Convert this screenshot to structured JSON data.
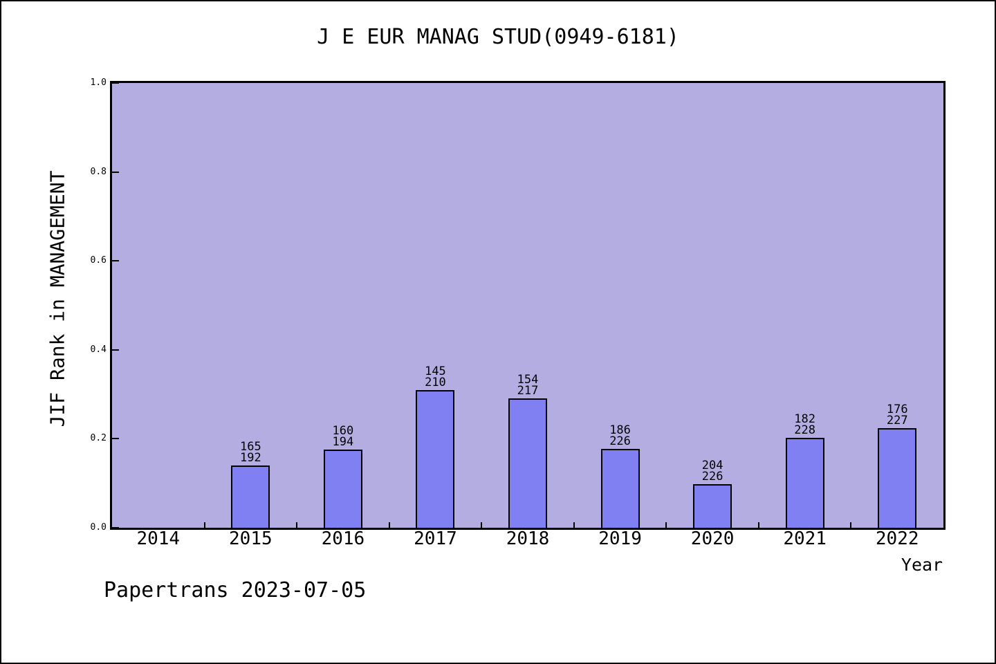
{
  "title": "J E EUR MANAG STUD(0949-6181)",
  "watermark": "Papertrans 2023-07-05",
  "colors": {
    "plot_background": "#b4ade2",
    "bar_fill": "#8080f2",
    "bar_border": "#000000",
    "text": "#000000"
  },
  "y_axis": {
    "title": "JIF Rank in MANAGEMENT",
    "min": 0.0,
    "max": 1.0,
    "tick_values": [
      0.0,
      0.2,
      0.4,
      0.6,
      0.8,
      1.0
    ],
    "tick_labels": [
      "0.0",
      "0.2",
      "0.4",
      "0.6",
      "0.8",
      "1.0"
    ]
  },
  "x_axis": {
    "title": "Year",
    "tick_values": [
      2014,
      2015,
      2016,
      2017,
      2018,
      2019,
      2020,
      2021,
      2022
    ],
    "tick_labels": [
      "2014",
      "2015",
      "2016",
      "2017",
      "2018",
      "2019",
      "2020",
      "2021",
      "2022"
    ]
  },
  "chart_data": {
    "type": "bar",
    "title": "J E EUR MANAG STUD(0949-6181)",
    "xlabel": "Year",
    "ylabel": "JIF Rank in MANAGEMENT",
    "ylim": [
      0.0,
      1.0
    ],
    "xlim": [
      2013.5,
      2022.5
    ],
    "grid": false,
    "legend": false,
    "categories": [
      2014,
      2015,
      2016,
      2017,
      2018,
      2019,
      2020,
      2021,
      2022
    ],
    "bars": [
      {
        "year": 2015,
        "rank": 165,
        "total": 192,
        "value": 0.1406
      },
      {
        "year": 2016,
        "rank": 160,
        "total": 194,
        "value": 0.1753
      },
      {
        "year": 2017,
        "rank": 145,
        "total": 210,
        "value": 0.3095
      },
      {
        "year": 2018,
        "rank": 154,
        "total": 217,
        "value": 0.2903
      },
      {
        "year": 2019,
        "rank": 186,
        "total": 226,
        "value": 0.177
      },
      {
        "year": 2020,
        "rank": 204,
        "total": 226,
        "value": 0.0973
      },
      {
        "year": 2021,
        "rank": 182,
        "total": 228,
        "value": 0.2018
      },
      {
        "year": 2022,
        "rank": 176,
        "total": 227,
        "value": 0.2247
      }
    ],
    "bar_label_format": "rank over total, stacked above each bar",
    "value_derivation": "value = 1 - rank/total"
  }
}
